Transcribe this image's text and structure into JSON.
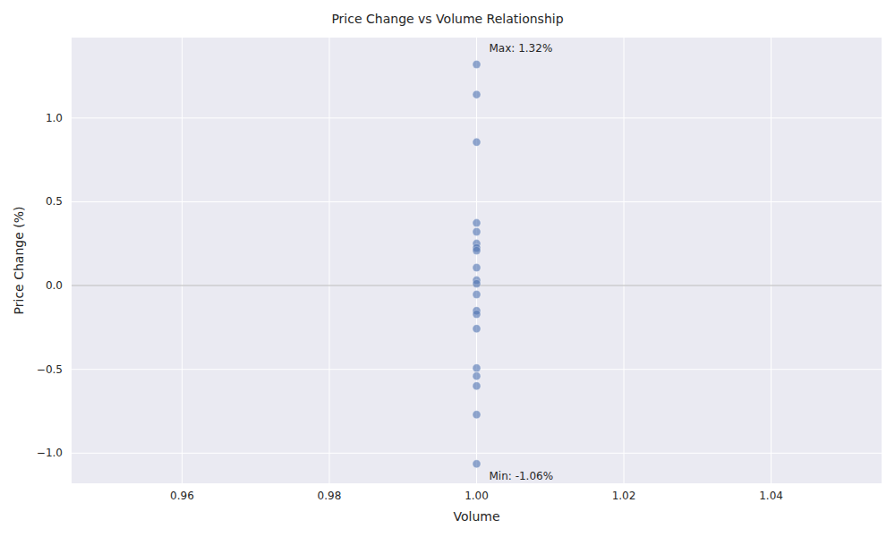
{
  "chart_data": {
    "type": "scatter",
    "title": "Price Change vs Volume Relationship",
    "x_label": "Volume",
    "y_label": "Price Change (%)",
    "x": [
      1,
      1,
      1,
      1,
      1,
      1,
      1,
      1,
      1,
      1,
      1,
      1,
      1,
      1,
      1,
      1,
      1,
      1,
      1,
      1
    ],
    "y": [
      1.32,
      1.14,
      0.856,
      0.374,
      0.321,
      0.251,
      0.225,
      0.209,
      0.107,
      0.032,
      0.011,
      -0.053,
      -0.15,
      -0.171,
      -0.257,
      -0.492,
      -0.54,
      -0.599,
      -0.77,
      -1.064
    ],
    "color": "#4c72b0",
    "xlim": [
      0.945,
      1.055
    ],
    "xticks": [
      0.96,
      0.98,
      {
        "value": 1,
        "label": "1.00"
      },
      1.02,
      1.04
    ],
    "ylim": [
      -1.18,
      1.48
    ],
    "yticks": [
      {
        "value": -1,
        "label": "−1.0"
      },
      {
        "value": -0.5,
        "label": "−0.5"
      },
      {
        "value": 0,
        "label": "0.0"
      },
      0.5,
      {
        "value": 1,
        "label": "1.0"
      }
    ],
    "annotations": [
      {
        "text": "Max: 1.32%",
        "x": 1,
        "y": 1.32
      },
      {
        "text": "Min: -1.06%",
        "x": 1,
        "y": -1.064
      }
    ],
    "grid": true
  }
}
